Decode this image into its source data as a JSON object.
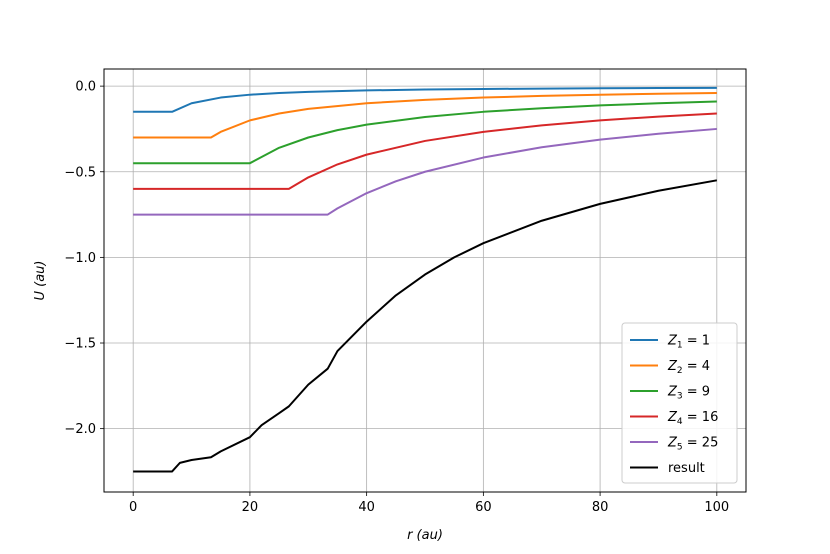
{
  "chart_data": {
    "type": "line",
    "xlabel": "r (au)",
    "ylabel": "U (au)",
    "xlim": [
      -5,
      105
    ],
    "ylim": [
      -2.37,
      0.1
    ],
    "xticks": [
      0,
      20,
      40,
      60,
      80,
      100
    ],
    "xtick_labels": [
      "0",
      "20",
      "40",
      "60",
      "80",
      "100"
    ],
    "yticks": [
      0.0,
      -0.5,
      -1.0,
      -1.5,
      -2.0
    ],
    "ytick_labels": [
      "0.0",
      "−0.5",
      "−1.0",
      "−1.5",
      "−2.0"
    ],
    "grid": true,
    "legend_position": "lower-right",
    "series": [
      {
        "name": "Z1 = 1",
        "legend": {
          "sym": "Z",
          "sub": "1",
          "rest": " = 1"
        },
        "color": "#1f77b4",
        "x": [
          0,
          6.67,
          10,
          15,
          20,
          25,
          30,
          40,
          50,
          60,
          70,
          80,
          90,
          100
        ],
        "y": [
          -0.15,
          -0.15,
          -0.1,
          -0.0667,
          -0.05,
          -0.04,
          -0.0333,
          -0.025,
          -0.02,
          -0.0167,
          -0.0143,
          -0.0125,
          -0.0111,
          -0.01
        ]
      },
      {
        "name": "Z2 = 4",
        "legend": {
          "sym": "Z",
          "sub": "2",
          "rest": " = 4"
        },
        "color": "#ff7f0e",
        "x": [
          0,
          13.33,
          15,
          20,
          25,
          30,
          40,
          50,
          60,
          70,
          80,
          90,
          100
        ],
        "y": [
          -0.3,
          -0.3,
          -0.267,
          -0.2,
          -0.16,
          -0.133,
          -0.1,
          -0.08,
          -0.0667,
          -0.0571,
          -0.05,
          -0.0444,
          -0.04
        ]
      },
      {
        "name": "Z3 = 9",
        "legend": {
          "sym": "Z",
          "sub": "3",
          "rest": " = 9"
        },
        "color": "#2ca02c",
        "x": [
          0,
          20,
          25,
          30,
          35,
          40,
          50,
          60,
          70,
          80,
          90,
          100
        ],
        "y": [
          -0.45,
          -0.45,
          -0.36,
          -0.3,
          -0.257,
          -0.225,
          -0.18,
          -0.15,
          -0.129,
          -0.1125,
          -0.1,
          -0.09
        ]
      },
      {
        "name": "Z4 = 16",
        "legend": {
          "sym": "Z",
          "sub": "4",
          "rest": " = 16"
        },
        "color": "#d62728",
        "x": [
          0,
          26.67,
          30,
          35,
          40,
          50,
          60,
          70,
          80,
          90,
          100
        ],
        "y": [
          -0.6,
          -0.6,
          -0.533,
          -0.457,
          -0.4,
          -0.32,
          -0.267,
          -0.229,
          -0.2,
          -0.178,
          -0.16
        ]
      },
      {
        "name": "Z5 = 25",
        "legend": {
          "sym": "Z",
          "sub": "5",
          "rest": " = 25"
        },
        "color": "#9467bd",
        "x": [
          0,
          33.33,
          35,
          40,
          45,
          50,
          60,
          70,
          80,
          90,
          100
        ],
        "y": [
          -0.75,
          -0.75,
          -0.714,
          -0.625,
          -0.556,
          -0.5,
          -0.417,
          -0.357,
          -0.3125,
          -0.278,
          -0.25
        ]
      },
      {
        "name": "result",
        "legend": {
          "sym": "",
          "sub": "",
          "rest": "result"
        },
        "color": "#000000",
        "x": [
          0,
          6.67,
          8,
          10,
          13.33,
          15,
          20,
          22,
          25,
          26.67,
          30,
          33.33,
          35,
          40,
          45,
          50,
          55,
          60,
          70,
          80,
          90,
          100
        ],
        "y": [
          -2.25,
          -2.25,
          -2.2,
          -2.183,
          -2.167,
          -2.133,
          -2.05,
          -1.98,
          -1.91,
          -1.87,
          -1.743,
          -1.65,
          -1.547,
          -1.375,
          -1.222,
          -1.1,
          -1.0,
          -0.917,
          -0.786,
          -0.6875,
          -0.611,
          -0.55
        ]
      }
    ]
  }
}
